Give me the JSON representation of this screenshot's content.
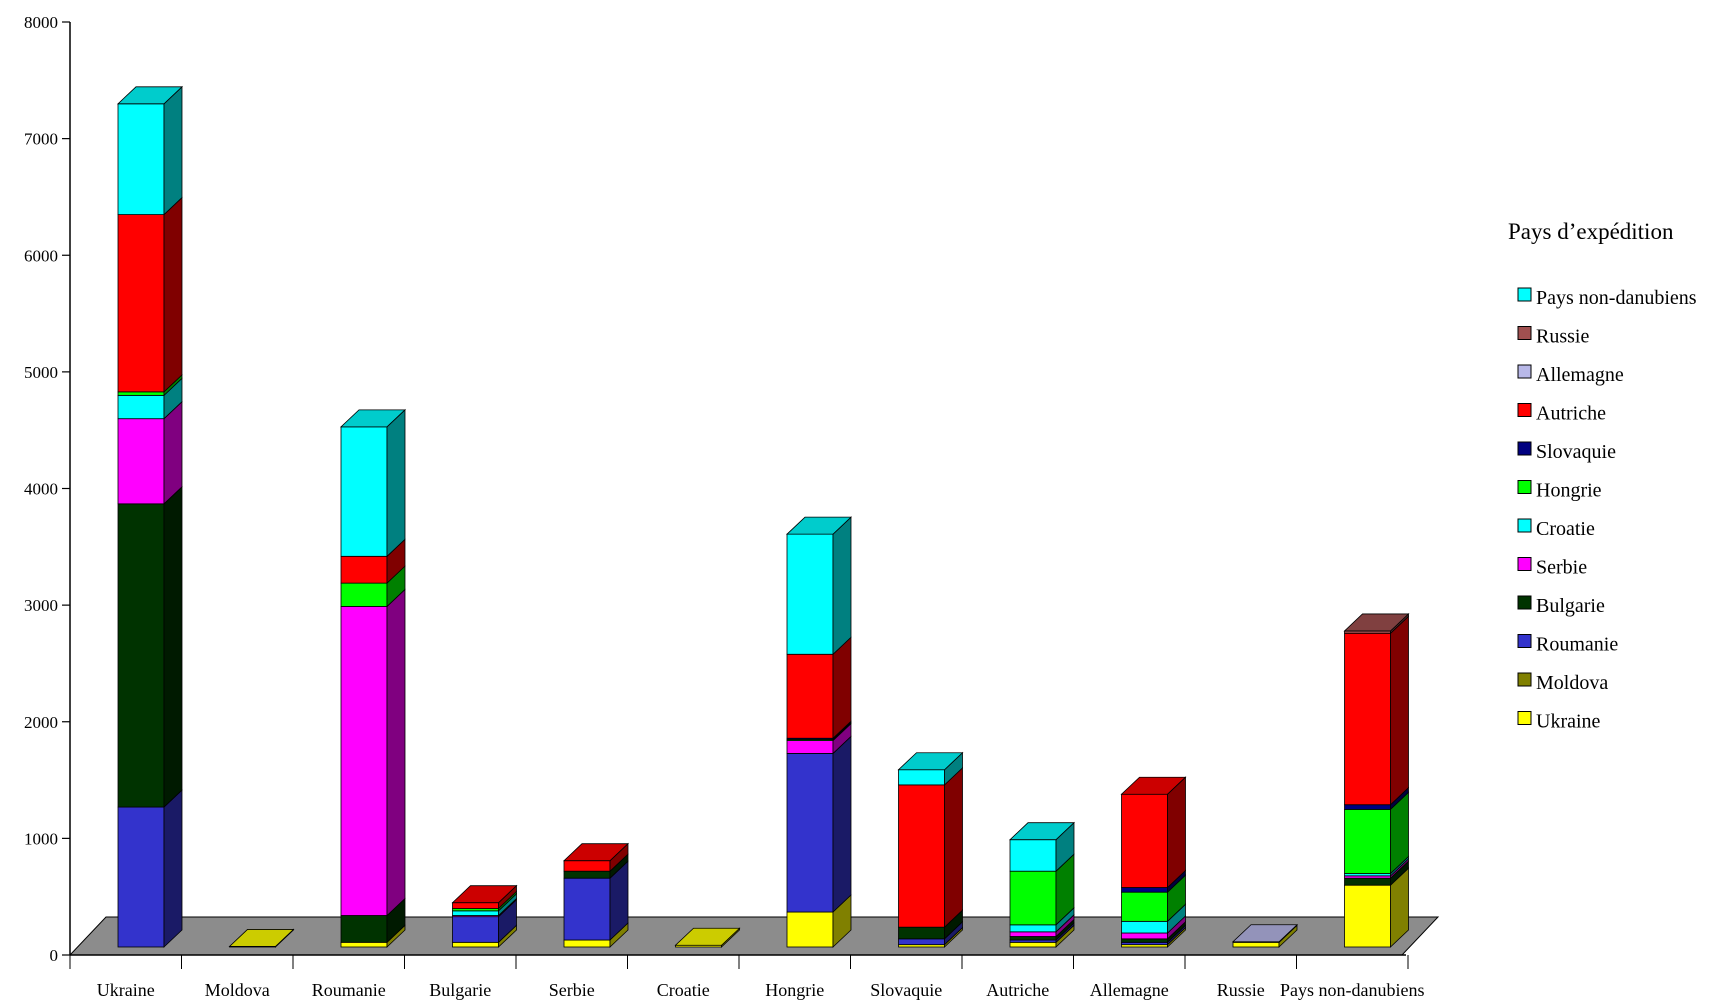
{
  "chart_data": {
    "type": "bar",
    "stacked": true,
    "three_d": true,
    "categories": [
      "Ukraine",
      "Moldova",
      "Roumanie",
      "Bulgarie",
      "Serbie",
      "Croatie",
      "Hongrie",
      "Slovaquie",
      "Autriche",
      "Allemagne",
      "Russie",
      "Pays non-danubiens"
    ],
    "ylim": [
      0,
      8000
    ],
    "yticks": [
      0,
      1000,
      2000,
      3000,
      4000,
      5000,
      6000,
      7000,
      8000
    ],
    "grid": false,
    "legend_title": "Pays d’expédition",
    "legend_position": "right",
    "series": [
      {
        "name": "Ukraine",
        "color": "#ffff00",
        "values": [
          0,
          5,
          40,
          40,
          60,
          15,
          300,
          20,
          40,
          20,
          40,
          530
        ]
      },
      {
        "name": "Moldova",
        "color": "#808000",
        "values": [
          0,
          0,
          0,
          0,
          0,
          0,
          0,
          0,
          0,
          0,
          0,
          0
        ]
      },
      {
        "name": "Roumanie",
        "color": "#3333cc",
        "values": [
          1200,
          0,
          0,
          220,
          530,
          0,
          1360,
          50,
          20,
          20,
          0,
          0
        ]
      },
      {
        "name": "Bulgarie",
        "color": "#003300",
        "values": [
          2600,
          0,
          230,
          0,
          60,
          0,
          0,
          100,
          30,
          30,
          0,
          60
        ]
      },
      {
        "name": "Serbie",
        "color": "#ff00ff",
        "values": [
          730,
          0,
          2650,
          10,
          0,
          0,
          110,
          0,
          40,
          50,
          0,
          20
        ]
      },
      {
        "name": "Croatie",
        "color": "#00ffff",
        "values": [
          200,
          0,
          0,
          40,
          0,
          0,
          0,
          0,
          60,
          100,
          0,
          20
        ]
      },
      {
        "name": "Hongrie",
        "color": "#00ff00",
        "values": [
          30,
          0,
          200,
          20,
          0,
          0,
          10,
          0,
          460,
          250,
          0,
          550
        ]
      },
      {
        "name": "Slovaquie",
        "color": "#000080",
        "values": [
          0,
          0,
          0,
          0,
          0,
          0,
          10,
          0,
          0,
          40,
          0,
          40
        ]
      },
      {
        "name": "Autriche",
        "color": "#ff0000",
        "values": [
          1520,
          0,
          230,
          50,
          90,
          0,
          720,
          1220,
          0,
          800,
          0,
          1470
        ]
      },
      {
        "name": "Allemagne",
        "color": "#b8b8e8",
        "values": [
          0,
          0,
          0,
          0,
          0,
          0,
          0,
          0,
          0,
          0,
          5,
          0
        ]
      },
      {
        "name": "Russie",
        "color": "#a05050",
        "values": [
          0,
          0,
          0,
          0,
          0,
          0,
          0,
          0,
          0,
          0,
          0,
          20
        ]
      },
      {
        "name": "Pays non-danubiens",
        "color": "#00ffff",
        "values": [
          950,
          0,
          1110,
          0,
          0,
          0,
          1030,
          130,
          270,
          0,
          0,
          0
        ]
      }
    ],
    "legend_order": [
      "Pays non-danubiens",
      "Russie",
      "Allemagne",
      "Autriche",
      "Slovaquie",
      "Hongrie",
      "Croatie",
      "Serbie",
      "Bulgarie",
      "Roumanie",
      "Moldova",
      "Ukraine"
    ]
  }
}
